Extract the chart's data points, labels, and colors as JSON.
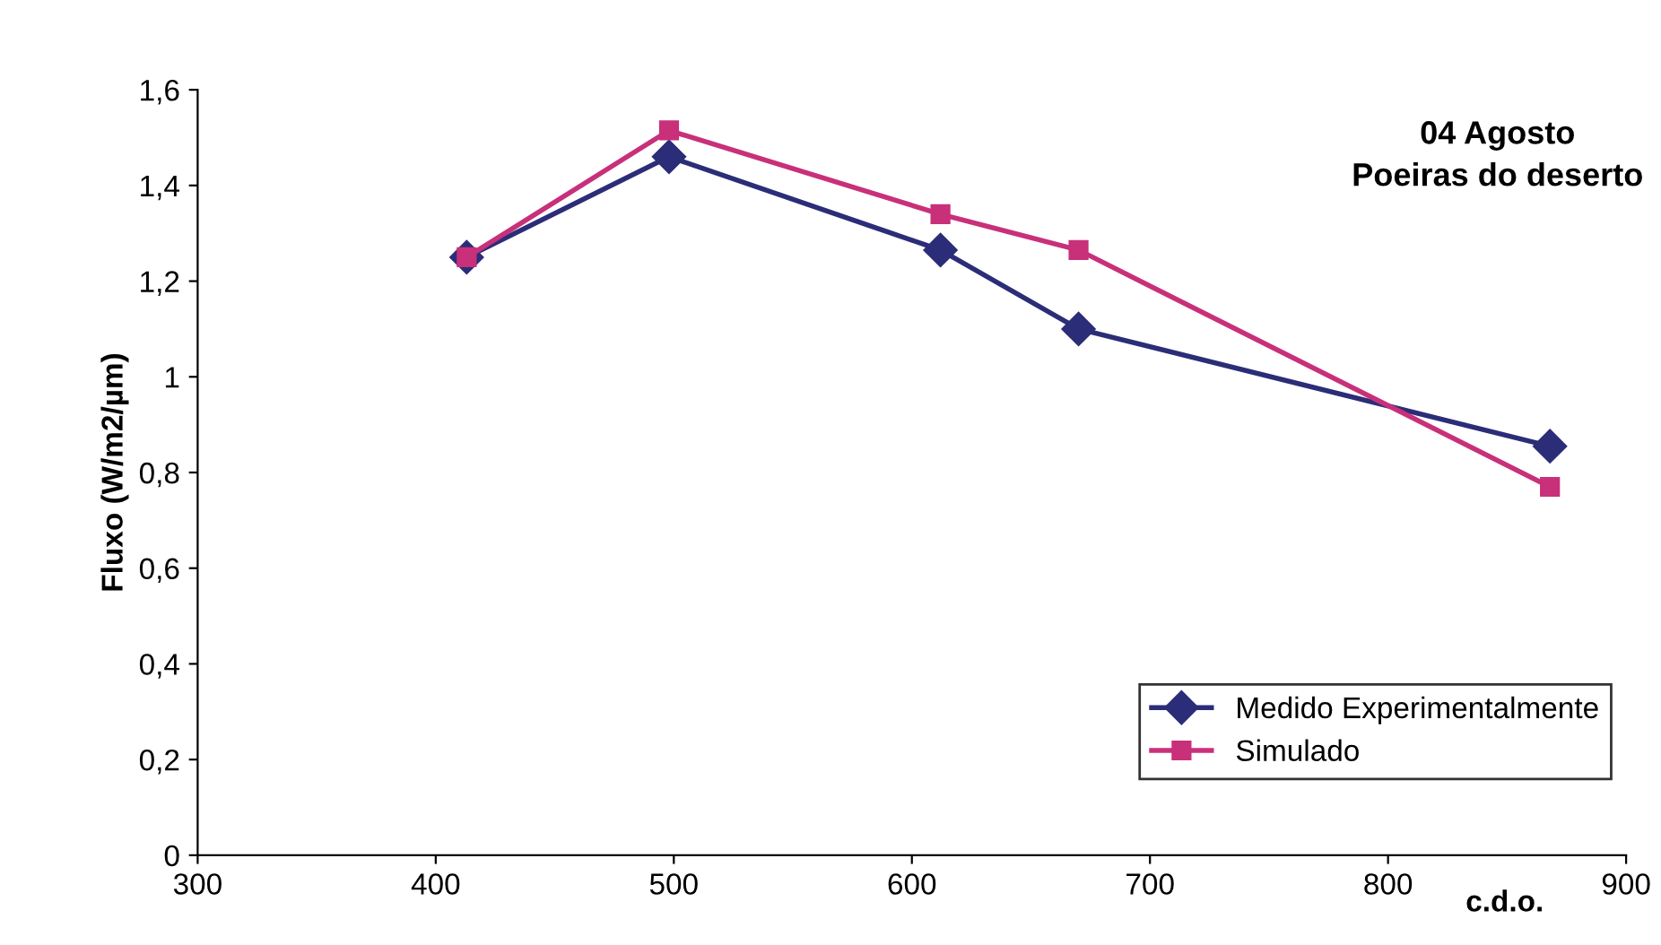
{
  "chart_data": {
    "type": "line",
    "title": "04 Agosto\nPoeiras do deserto",
    "xlabel": "c.d.o.",
    "ylabel": "Fluxo (W/m2/µm)",
    "series": [
      {
        "name": "Medido Experimentalmente",
        "color": "#2b2d78",
        "marker": "diamond",
        "x": [
          413,
          498,
          612,
          670,
          868
        ],
        "values": [
          1.25,
          1.46,
          1.265,
          1.1,
          0.855
        ]
      },
      {
        "name": "Simulado",
        "color": "#c8307a",
        "marker": "square",
        "x": [
          413,
          498,
          612,
          670,
          868
        ],
        "values": [
          1.25,
          1.515,
          1.34,
          1.265,
          0.77
        ]
      }
    ],
    "xlim": [
      300,
      900
    ],
    "xticks": [
      300,
      400,
      500,
      600,
      700,
      800,
      900
    ],
    "ylim": [
      0,
      1.6
    ],
    "yticks": [
      0,
      {
        "value": 0.2,
        "label": "0,2"
      },
      {
        "value": 0.4,
        "label": "0,4"
      },
      {
        "value": 0.6,
        "label": "0,6"
      },
      {
        "value": 0.8,
        "label": "0,8"
      },
      1,
      {
        "value": 1.2,
        "label": "1,2"
      },
      {
        "value": 1.4,
        "label": "1,4"
      },
      {
        "value": 1.6,
        "label": "1,6"
      }
    ],
    "legend": "bottom right",
    "grid": false,
    "line_style": "solid"
  }
}
